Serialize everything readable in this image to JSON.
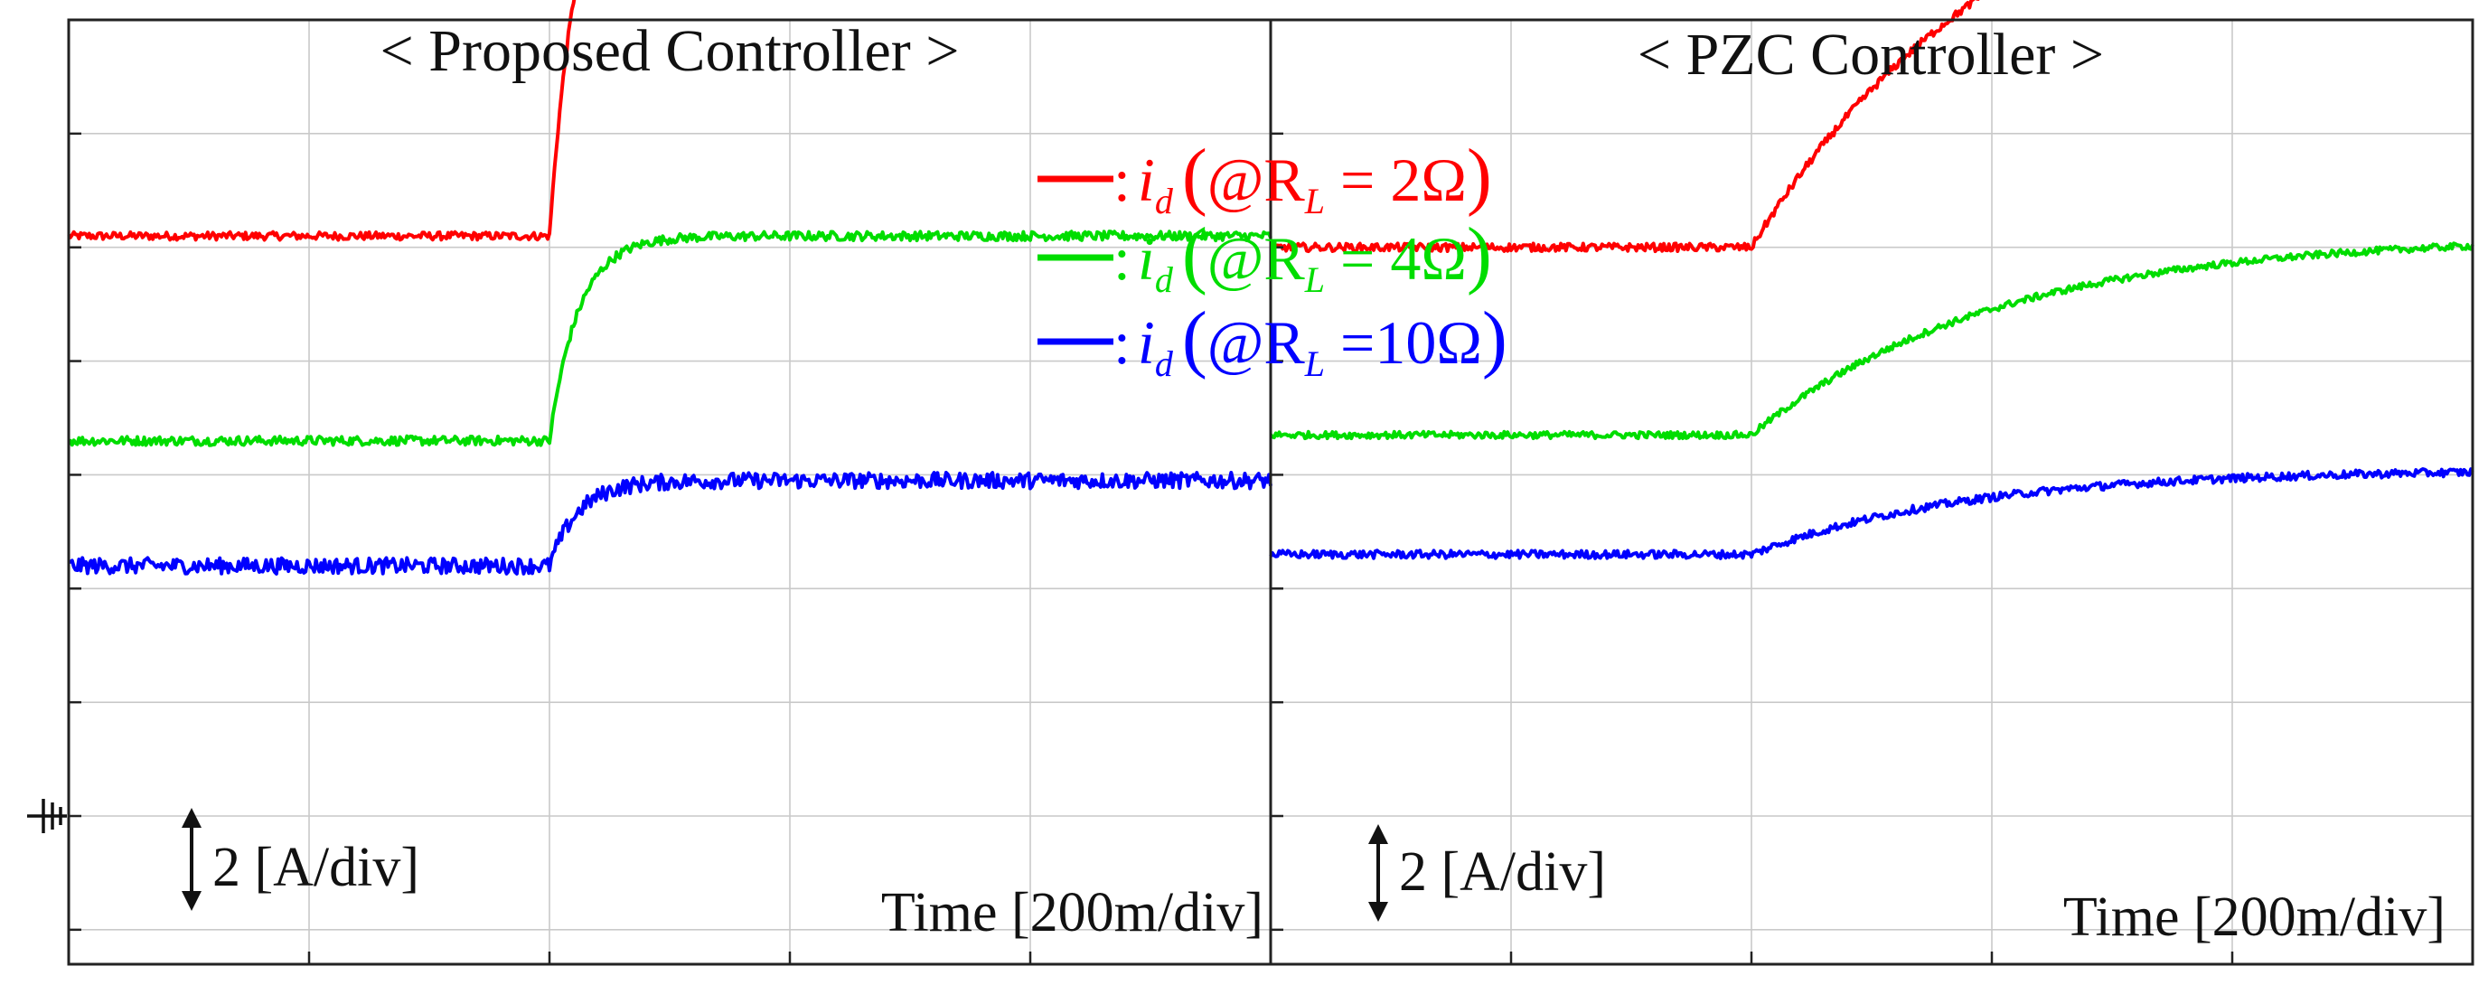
{
  "chart_data": [
    {
      "type": "line",
      "title": "< Proposed Controller >",
      "xlabel": "Time [200m/div]",
      "scale_label": "2 [A/div]",
      "grid": true,
      "x_divisions": 5,
      "y_divisions": 9,
      "step_division": 2.0,
      "series": [
        {
          "color": "#ff0000",
          "initial_div": 5.1,
          "final_div": 8.75,
          "tau_div": 0.12,
          "noise_div": 0.035
        },
        {
          "color": "#00dd00",
          "initial_div": 3.3,
          "final_div": 5.1,
          "tau_div": 0.12,
          "noise_div": 0.04
        },
        {
          "color": "#0000ff",
          "initial_div": 2.2,
          "final_div": 2.95,
          "tau_div": 0.12,
          "noise_div": 0.07
        }
      ]
    },
    {
      "type": "line",
      "title": "< PZC Controller >",
      "xlabel": "Time [200m/div]",
      "scale_label": "2 [A/div]",
      "grid": true,
      "x_divisions": 5,
      "y_divisions": 9,
      "step_division": 2.0,
      "series": [
        {
          "color": "#ff0000",
          "initial_div": 5.0,
          "final_div": 8.8,
          "tau_div": 1.1,
          "noise_div": 0.035
        },
        {
          "color": "#00dd00",
          "initial_div": 3.35,
          "final_div": 5.1,
          "tau_div": 1.0,
          "noise_div": 0.03
        },
        {
          "color": "#0000ff",
          "initial_div": 2.3,
          "final_div": 3.05,
          "tau_div": 0.9,
          "noise_div": 0.035
        }
      ]
    }
  ],
  "legend": [
    {
      "color": "#ff0000",
      "prefix": ":",
      "var": "i",
      "sub": "d",
      "open": "(",
      "at": "@R",
      "load_sub": "L",
      "eq": " = 2Ω",
      "close": ")"
    },
    {
      "color": "#00dd00",
      "prefix": ":",
      "var": "i",
      "sub": "d",
      "open": "(",
      "at": "@R",
      "load_sub": "L",
      "eq": " = 4Ω",
      "close": ")"
    },
    {
      "color": "#0000ff",
      "prefix": ":",
      "var": "i",
      "sub": "d",
      "open": "(",
      "at": "@R",
      "load_sub": "L",
      "eq": " =10Ω",
      "close": ")"
    }
  ],
  "icons": {
    "ground": "ground-symbol-icon",
    "scale": "double-arrow-icon"
  }
}
